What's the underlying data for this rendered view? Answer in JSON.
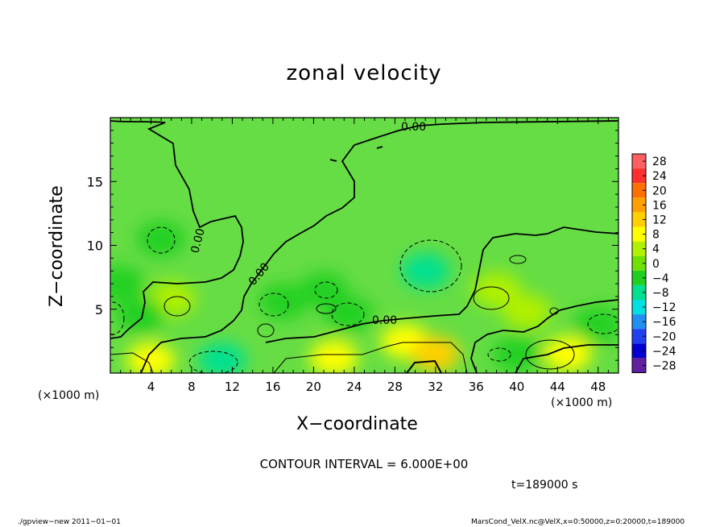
{
  "chart_data": {
    "type": "heatmap",
    "title": "zonal velocity",
    "xlabel": "X−coordinate",
    "ylabel": "Z−coordinate",
    "x_unit": "(×1000 m)",
    "xlim": [
      0,
      50
    ],
    "ylim": [
      0,
      20
    ],
    "x_ticks": [
      4,
      8,
      12,
      16,
      20,
      24,
      28,
      32,
      36,
      40,
      44,
      48
    ],
    "y_ticks": [
      5,
      10,
      15
    ],
    "colorbar": {
      "labels": [
        "28",
        "24",
        "20",
        "16",
        "12",
        "8",
        "4",
        "0",
        "−4",
        "−8",
        "−12",
        "−16",
        "−20",
        "−24",
        "−28"
      ],
      "colors": [
        "#ff6060",
        "#ff3030",
        "#ff7000",
        "#ffa000",
        "#ffd000",
        "#ffff00",
        "#b0f000",
        "#70e000",
        "#20d020",
        "#00e090",
        "#00e0e0",
        "#2090f0",
        "#2040f0",
        "#0000d0",
        "#6020a0"
      ]
    },
    "contour_labels": [
      "0.00",
      "0.00",
      "0.00",
      "0.00"
    ],
    "contour_interval": "CONTOUR INTERVAL = 6.000E+00",
    "time": "t=189000 s",
    "patches": [
      {
        "x": 5,
        "z": 10.5,
        "value": -3
      },
      {
        "x": 6,
        "z": 5.8,
        "value": 5
      },
      {
        "x": 3,
        "z": 4.5,
        "value": -3
      },
      {
        "x": 17,
        "z": 5.6,
        "value": -5
      },
      {
        "x": 21,
        "z": 6.5,
        "value": -6
      },
      {
        "x": 23.5,
        "z": 4.6,
        "value": -5
      },
      {
        "x": 31,
        "z": 8,
        "value": -8
      },
      {
        "x": 11,
        "z": 1.0,
        "value": -10
      },
      {
        "x": 29,
        "z": 2.5,
        "value": 8
      },
      {
        "x": 32,
        "z": 1.5,
        "value": 10
      },
      {
        "x": 22,
        "z": 1.2,
        "value": 7
      },
      {
        "x": 4,
        "z": 1.0,
        "value": 9
      },
      {
        "x": 41,
        "z": 4.8,
        "value": 4
      },
      {
        "x": 38,
        "z": 6.5,
        "value": 3
      },
      {
        "x": 48,
        "z": 3.8,
        "value": -6
      },
      {
        "x": 40,
        "z": 1.5,
        "value": -5
      },
      {
        "x": 45,
        "z": 1.5,
        "value": 6
      },
      {
        "x": 1,
        "z": 7,
        "value": -4
      }
    ]
  },
  "footer": {
    "left": "./gpview−new   2011−01−01",
    "right": "MarsCond_VelX.nc@VelX,x=0:50000,z=0:20000,t=189000"
  }
}
